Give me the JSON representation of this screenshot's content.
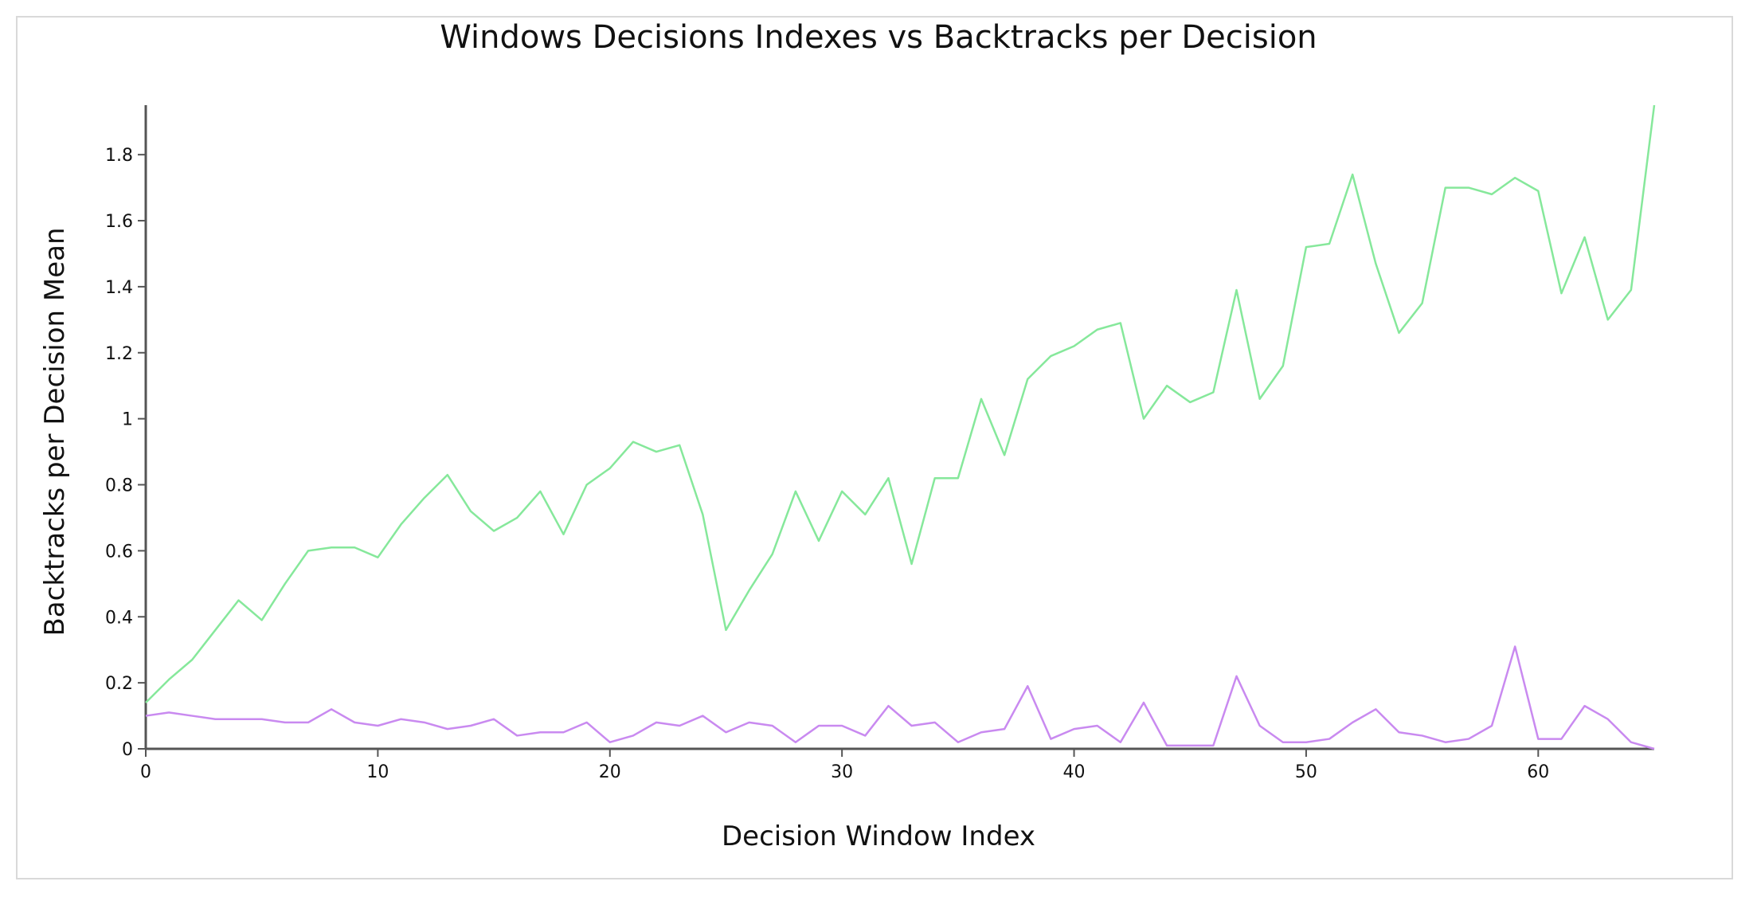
{
  "chart_data": {
    "type": "line",
    "title": "Windows Decisions Indexes vs Backtracks per Decision",
    "xlabel": "Decision Window Index",
    "ylabel": "Backtracks per Decision Mean",
    "xlim": [
      0,
      65
    ],
    "ylim": [
      0,
      1.95
    ],
    "x_ticks": [
      0,
      10,
      20,
      30,
      40,
      50,
      60
    ],
    "x_tick_labels": [
      "0",
      "10",
      "20",
      "30",
      "40",
      "50",
      "60"
    ],
    "y_ticks": [
      0,
      0.2,
      0.4,
      0.6,
      0.8,
      1,
      1.2,
      1.4,
      1.6,
      1.8
    ],
    "y_tick_labels": [
      "0",
      "0.2",
      "0.4",
      "0.6",
      "0.8",
      "1",
      "1.2",
      "1.4",
      "1.6",
      "1.8"
    ],
    "grid": false,
    "x": [
      0,
      1,
      2,
      3,
      4,
      5,
      6,
      7,
      8,
      9,
      10,
      11,
      12,
      13,
      14,
      15,
      16,
      17,
      18,
      19,
      20,
      21,
      22,
      23,
      24,
      25,
      26,
      27,
      28,
      29,
      30,
      31,
      32,
      33,
      34,
      35,
      36,
      37,
      38,
      39,
      40,
      41,
      42,
      43,
      44,
      45,
      46,
      47,
      48,
      49,
      50,
      51,
      52,
      53,
      54,
      55,
      56,
      57,
      58,
      59,
      60,
      61,
      62,
      63,
      64,
      65
    ],
    "series": [
      {
        "color": "#86e89b",
        "values": [
          0.14,
          0.21,
          0.27,
          0.36,
          0.45,
          0.39,
          0.5,
          0.6,
          0.61,
          0.61,
          0.58,
          0.68,
          0.76,
          0.83,
          0.72,
          0.66,
          0.7,
          0.78,
          0.65,
          0.8,
          0.85,
          0.93,
          0.9,
          0.92,
          0.71,
          0.36,
          0.48,
          0.59,
          0.78,
          0.63,
          0.78,
          0.71,
          0.82,
          0.56,
          0.82,
          0.82,
          1.06,
          0.89,
          1.12,
          1.19,
          1.22,
          1.27,
          1.29,
          1.0,
          1.1,
          1.05,
          1.08,
          1.39,
          1.06,
          1.16,
          1.52,
          1.53,
          1.74,
          1.47,
          1.26,
          1.35,
          1.7,
          1.7,
          1.68,
          1.73,
          1.69,
          1.38,
          1.55,
          1.3,
          1.39,
          1.95
        ]
      },
      {
        "color": "#c98af0",
        "values": [
          0.1,
          0.11,
          0.1,
          0.09,
          0.09,
          0.09,
          0.08,
          0.08,
          0.12,
          0.08,
          0.07,
          0.09,
          0.08,
          0.06,
          0.07,
          0.09,
          0.04,
          0.05,
          0.05,
          0.08,
          0.02,
          0.04,
          0.08,
          0.07,
          0.1,
          0.05,
          0.08,
          0.07,
          0.02,
          0.07,
          0.07,
          0.04,
          0.13,
          0.07,
          0.08,
          0.02,
          0.05,
          0.06,
          0.19,
          0.03,
          0.06,
          0.07,
          0.02,
          0.14,
          0.01,
          0.01,
          0.01,
          0.22,
          0.07,
          0.02,
          0.02,
          0.03,
          0.08,
          0.12,
          0.05,
          0.04,
          0.02,
          0.03,
          0.07,
          0.31,
          0.03,
          0.03,
          0.13,
          0.09,
          0.02,
          0.0
        ]
      }
    ]
  }
}
